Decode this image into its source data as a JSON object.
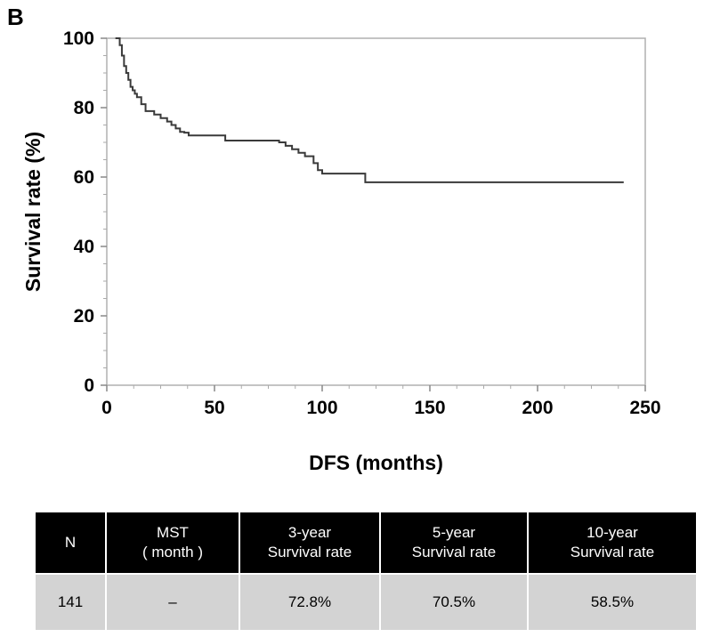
{
  "panel_label": "B",
  "chart_data": {
    "type": "line",
    "xlabel": "DFS (months)",
    "ylabel": "Survival rate (%)",
    "xlim": [
      0,
      250
    ],
    "ylim": [
      0,
      100
    ],
    "xticks": [
      0,
      50,
      100,
      150,
      200,
      250
    ],
    "yticks": [
      0,
      20,
      40,
      60,
      80,
      100
    ],
    "grid": false,
    "series": [
      {
        "step": true,
        "color": "#3a3a3a",
        "x": [
          4,
          6,
          7,
          8,
          9,
          10,
          11,
          12,
          13,
          14,
          16,
          18,
          20,
          22,
          25,
          28,
          30,
          32,
          34,
          36,
          38,
          45,
          55,
          66,
          72,
          80,
          83,
          86,
          89,
          92,
          96,
          98,
          100,
          106,
          114,
          120,
          150,
          200,
          240
        ],
        "y": [
          100,
          98,
          95,
          92,
          90,
          88,
          86,
          85,
          84,
          83,
          81,
          79,
          79,
          78,
          77,
          76,
          75,
          74,
          73,
          72.8,
          72,
          72,
          70.5,
          70.5,
          70.5,
          70,
          69,
          68,
          67,
          66,
          64,
          62,
          61,
          61,
          61,
          58.5,
          58.5,
          58.5,
          58.5
        ]
      }
    ]
  },
  "table": {
    "headers": [
      [
        "N"
      ],
      [
        "MST",
        "( month )"
      ],
      [
        "3-year",
        "Survival rate"
      ],
      [
        "5-year",
        "Survival rate"
      ],
      [
        "10-year",
        "Survival rate"
      ]
    ],
    "row": [
      "141",
      "–",
      "72.8%",
      "70.5%",
      "58.5%"
    ]
  }
}
